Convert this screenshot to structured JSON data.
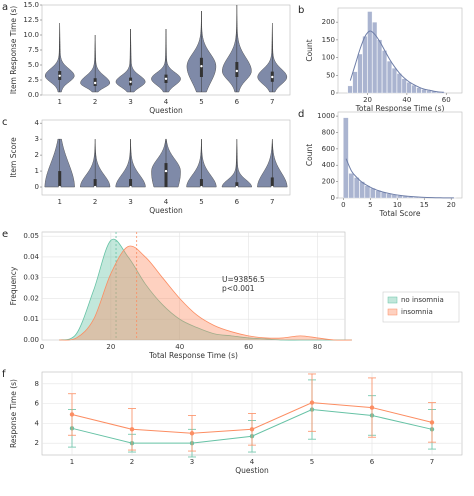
{
  "chart_data": [
    {
      "panel": "a",
      "type": "violin",
      "xlabel": "Question",
      "ylabel": "Item Response Time (s)",
      "color": "#7f8aa8",
      "categories": [
        "1",
        "2",
        "3",
        "4",
        "5",
        "6",
        "7"
      ],
      "series": [
        {
          "name": "1",
          "values": [
            0.5,
            2.5,
            3.2,
            4.0,
            12
          ]
        },
        {
          "name": "2",
          "values": [
            0.5,
            1.5,
            2.0,
            2.8,
            10
          ]
        },
        {
          "name": "3",
          "values": [
            0.5,
            1.6,
            2.2,
            2.9,
            11
          ]
        },
        {
          "name": "4",
          "values": [
            0.5,
            2.0,
            2.7,
            3.4,
            11
          ]
        },
        {
          "name": "5",
          "values": [
            0.5,
            3.0,
            4.8,
            6.2,
            14
          ]
        },
        {
          "name": "6",
          "values": [
            0.5,
            3.0,
            4.0,
            5.5,
            15
          ]
        },
        {
          "name": "7",
          "values": [
            0.5,
            2.2,
            3.0,
            3.9,
            12
          ]
        }
      ],
      "ylim": [
        0,
        15
      ],
      "yticks": [
        {
          "value": 0,
          "label": "0.0"
        },
        {
          "value": 2.5,
          "label": "2.5"
        },
        {
          "value": 5,
          "label": "5.0"
        },
        {
          "value": 7.5,
          "label": "7.5"
        },
        {
          "value": 10,
          "label": "10.0"
        },
        {
          "value": 12.5,
          "label": "12.5"
        },
        {
          "value": 15,
          "label": "15.0"
        }
      ],
      "grid": false
    },
    {
      "panel": "b",
      "type": "histogram",
      "xlabel": "Total Response Time (s)",
      "ylabel": "Count",
      "color": "#aab4d0",
      "line_color": "#6e7ea8",
      "bins": [
        10,
        12.5,
        15,
        17.5,
        20,
        22.5,
        25,
        27.5,
        30,
        32.5,
        35,
        37.5,
        40,
        42.5,
        45,
        47.5,
        50,
        52.5,
        55,
        57.5,
        60
      ],
      "values": [
        20,
        60,
        110,
        160,
        230,
        200,
        150,
        120,
        90,
        70,
        55,
        40,
        30,
        22,
        15,
        10,
        7,
        5,
        3,
        2
      ],
      "kde": [
        35,
        80,
        125,
        160,
        175,
        165,
        145,
        120,
        95,
        74,
        56,
        42,
        31,
        23,
        16,
        11,
        8,
        5,
        3,
        2
      ],
      "xlim": [
        5,
        68
      ],
      "xticks": [
        20,
        40,
        60
      ],
      "ylim": [
        0,
        240
      ],
      "yticks": [
        0,
        50,
        100,
        150,
        200
      ],
      "grid": false
    },
    {
      "panel": "c",
      "type": "violin",
      "xlabel": "Question",
      "ylabel": "Item Score",
      "color": "#7f8aa8",
      "categories": [
        "1",
        "2",
        "3",
        "4",
        "5",
        "6",
        "7"
      ],
      "series": [
        {
          "name": "1",
          "values": [
            0,
            0,
            0,
            1,
            3
          ]
        },
        {
          "name": "2",
          "values": [
            0,
            0,
            0,
            0.5,
            3
          ]
        },
        {
          "name": "3",
          "values": [
            0,
            0,
            0,
            0.5,
            3
          ]
        },
        {
          "name": "4",
          "values": [
            0,
            0,
            1,
            1.5,
            3
          ]
        },
        {
          "name": "5",
          "values": [
            0,
            0,
            0,
            0.5,
            3
          ]
        },
        {
          "name": "6",
          "values": [
            0,
            0,
            0,
            0.3,
            3
          ]
        },
        {
          "name": "7",
          "values": [
            0,
            0,
            0,
            0.6,
            3
          ]
        }
      ],
      "ylim": [
        -0.5,
        4.2
      ],
      "yticks": [
        0,
        1,
        2,
        3,
        4
      ],
      "grid": false
    },
    {
      "panel": "d",
      "type": "histogram",
      "xlabel": "Total Score",
      "ylabel": "Count",
      "color": "#aab4d0",
      "line_color": "#6e7ea8",
      "bins": [
        0,
        1,
        2,
        3,
        4,
        5,
        6,
        7,
        8,
        9,
        10,
        11,
        12,
        13,
        14,
        15,
        16,
        17,
        18,
        19,
        20,
        21
      ],
      "values": [
        980,
        300,
        250,
        200,
        150,
        120,
        90,
        70,
        50,
        40,
        30,
        20,
        15,
        10,
        6,
        4,
        3,
        2,
        1,
        1,
        1
      ],
      "kde": [
        480,
        330,
        250,
        190,
        150,
        115,
        90,
        70,
        55,
        42,
        32,
        24,
        18,
        13,
        9,
        6,
        4,
        3,
        2,
        1,
        1
      ],
      "xlim": [
        -1,
        22
      ],
      "xticks": [
        0,
        5,
        10,
        15,
        20
      ],
      "ylim": [
        0,
        1050
      ],
      "yticks": [
        0,
        200,
        400,
        600,
        800,
        1000
      ],
      "grid": false
    },
    {
      "panel": "e",
      "type": "kde",
      "xlabel": "Total Response Time (s)",
      "ylabel": "Frequency",
      "x": [
        5,
        10,
        15,
        20,
        25,
        30,
        35,
        40,
        45,
        50,
        55,
        60,
        65,
        70,
        75,
        80,
        85,
        90
      ],
      "series": [
        {
          "name": "no insomnia",
          "color": "#66c2a5",
          "mean": 21.5,
          "values": [
            0,
            0.003,
            0.024,
            0.048,
            0.04,
            0.027,
            0.017,
            0.01,
            0.006,
            0.003,
            0.002,
            0.001,
            0.0005,
            0,
            0,
            0,
            0,
            0
          ]
        },
        {
          "name": "insomnia",
          "color": "#fc8d62",
          "mean": 27.5,
          "values": [
            0,
            0.001,
            0.01,
            0.032,
            0.045,
            0.04,
            0.03,
            0.02,
            0.012,
            0.007,
            0.004,
            0.002,
            0.001,
            0.001,
            0.002,
            0.001,
            0,
            0
          ]
        }
      ],
      "annotations": [
        "U=93856.5",
        "p<0.001"
      ],
      "xlim": [
        0,
        88
      ],
      "xticks": [
        0,
        20,
        40,
        60,
        80
      ],
      "ylim": [
        0,
        0.052
      ],
      "yticks": [
        {
          "value": 0,
          "label": "0.00"
        },
        0.01,
        0.02,
        0.03,
        0.04,
        0.05
      ],
      "grid": true,
      "legend": "right"
    },
    {
      "panel": "f",
      "type": "errorline",
      "xlabel": "Question",
      "ylabel": "Response Time (s)",
      "categories": [
        "1",
        "2",
        "3",
        "4",
        "5",
        "6",
        "7"
      ],
      "series": [
        {
          "name": "no insomnia",
          "color": "#66c2a5",
          "values": [
            3.5,
            2.0,
            2.0,
            2.7,
            5.4,
            4.8,
            3.4
          ],
          "errors": [
            1.9,
            0.9,
            1.4,
            1.6,
            3.0,
            2.0,
            2.0
          ]
        },
        {
          "name": "insomnia",
          "color": "#fc8d62",
          "values": [
            4.9,
            3.4,
            3.0,
            3.4,
            6.1,
            5.6,
            4.1
          ],
          "errors": [
            2.1,
            2.1,
            1.8,
            1.6,
            2.9,
            3.0,
            2.0
          ]
        }
      ],
      "ylim": [
        0.8,
        9.2
      ],
      "yticks": [
        2,
        4,
        6,
        8
      ],
      "grid": true
    }
  ]
}
